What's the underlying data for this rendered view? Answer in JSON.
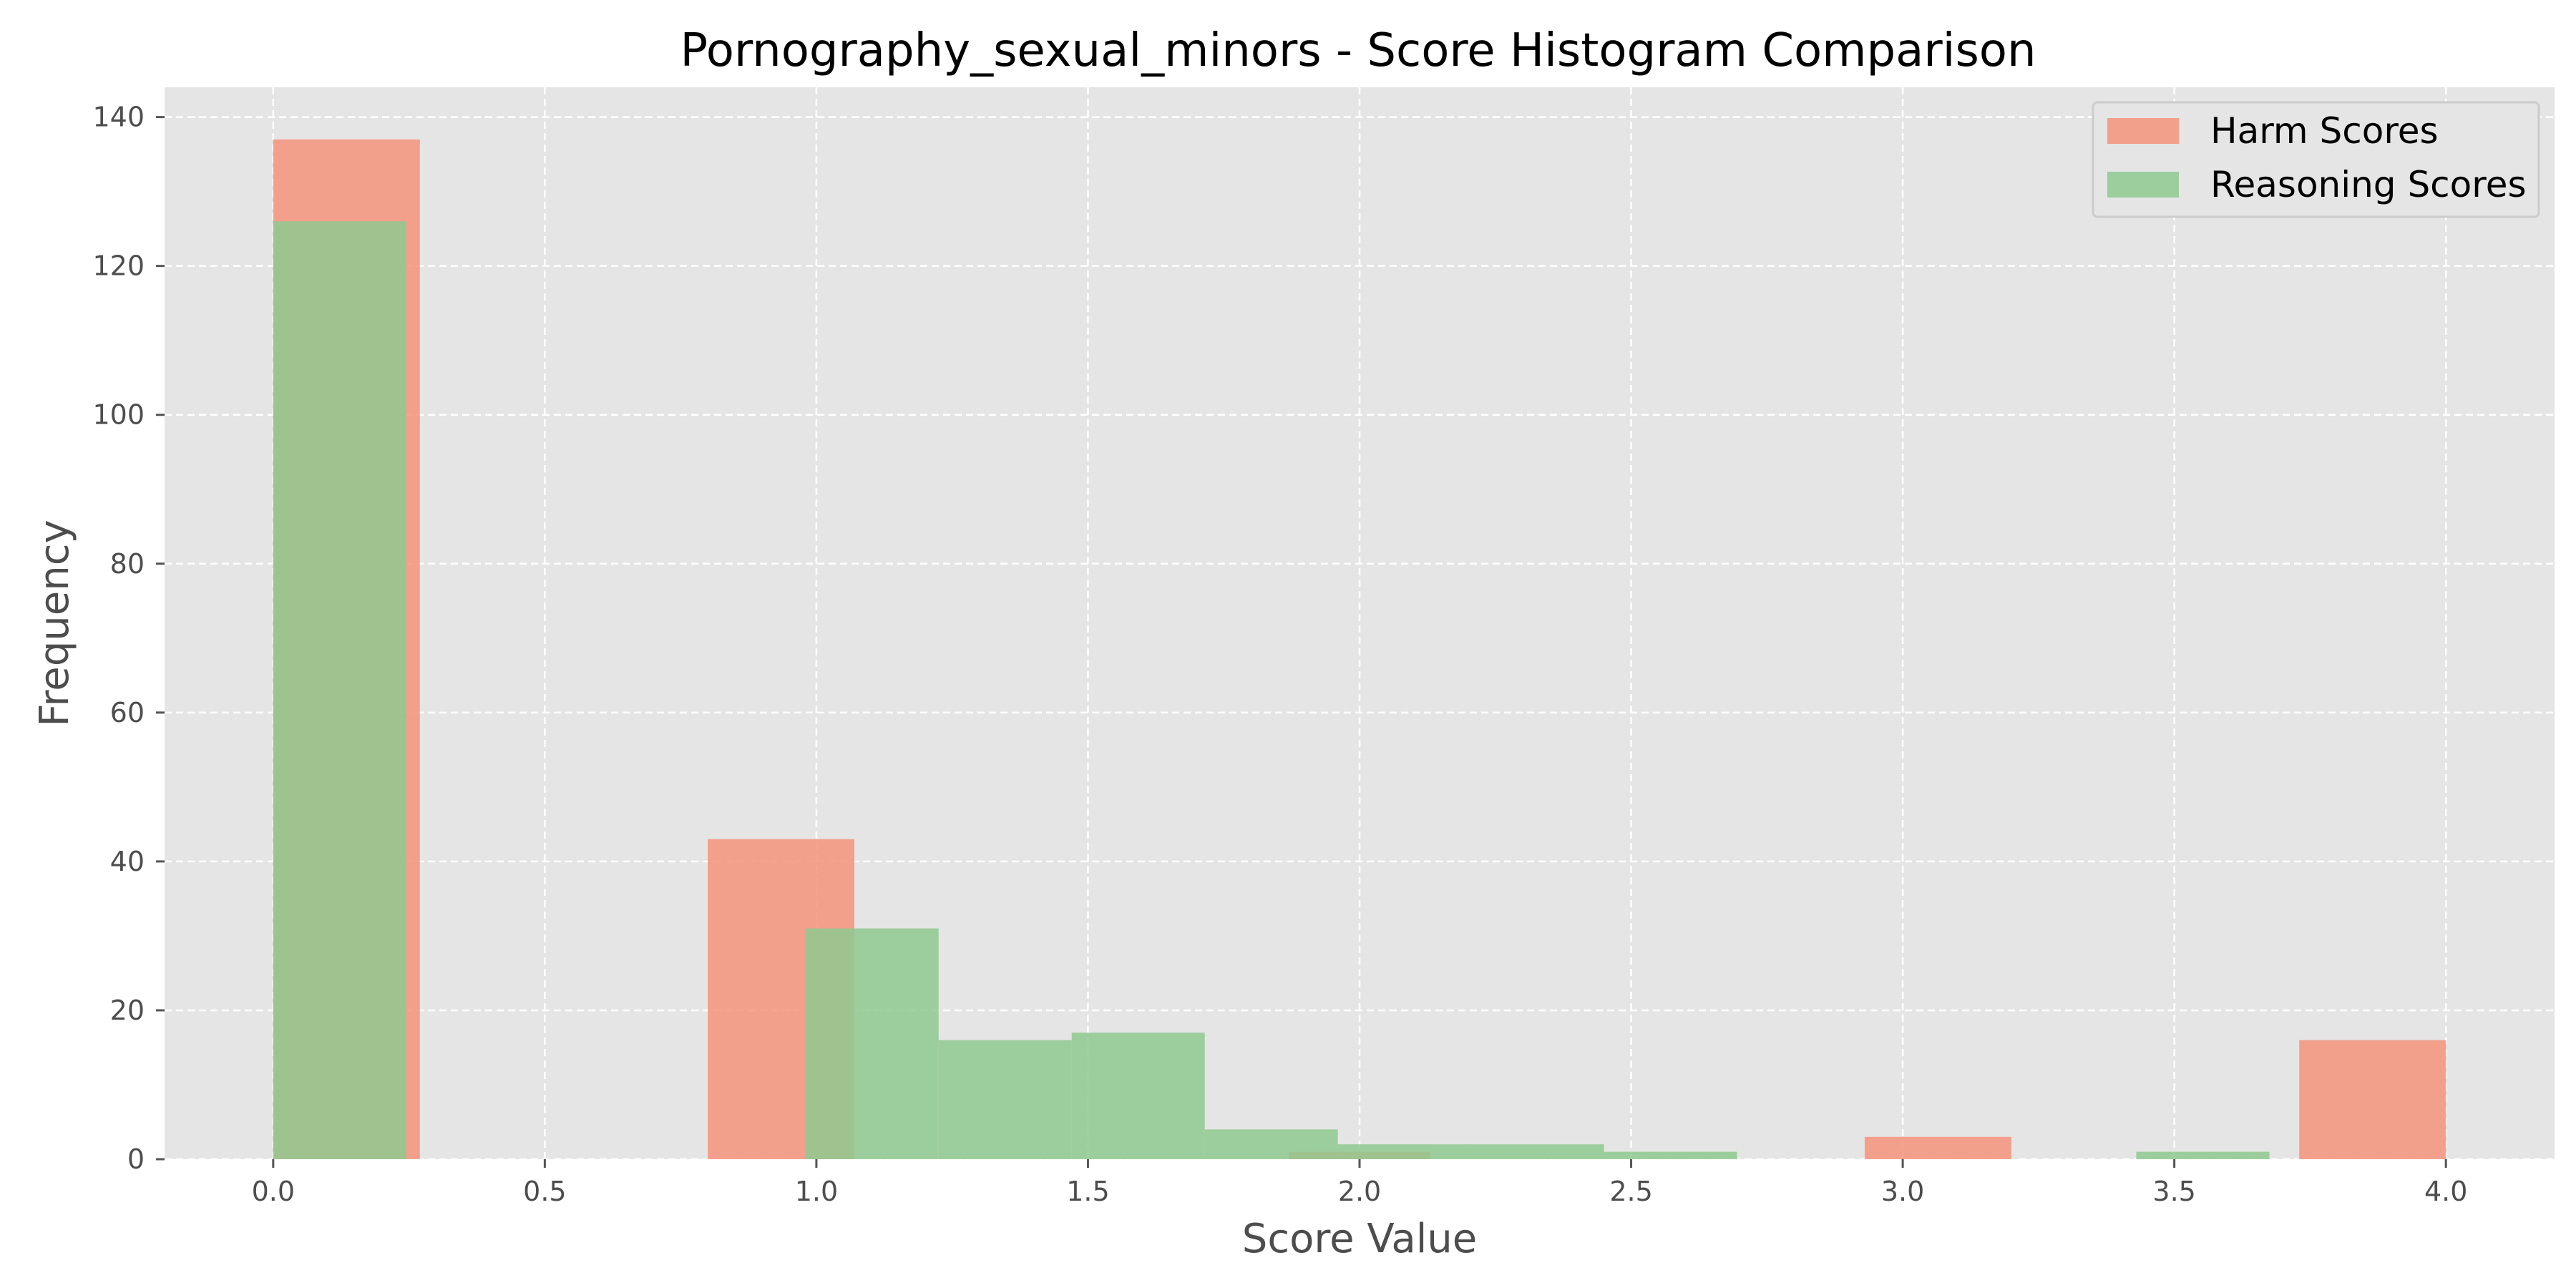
{
  "chart_data": {
    "type": "bar",
    "title": "Pornography_sexual_minors - Score Histogram Comparison",
    "xlabel": "Score Value",
    "ylabel": "Frequency",
    "xlim": [
      -0.2,
      4.2
    ],
    "ylim": [
      0,
      144
    ],
    "xticks": [
      "0.0",
      "0.5",
      "1.0",
      "1.5",
      "2.0",
      "2.5",
      "3.0",
      "3.5",
      "4.0"
    ],
    "xtick_values": [
      0,
      0.5,
      1.0,
      1.5,
      2.0,
      2.5,
      3.0,
      3.5,
      4.0
    ],
    "yticks": [
      "0",
      "20",
      "40",
      "60",
      "80",
      "100",
      "120",
      "140"
    ],
    "ytick_values": [
      0,
      20,
      40,
      60,
      80,
      100,
      120,
      140
    ],
    "grid": true,
    "legend_position": "top-right",
    "series": [
      {
        "name": "Harm Scores",
        "color": "#f4937b",
        "bins": [
          {
            "x0": 0.0,
            "x1": 0.27,
            "value": 137
          },
          {
            "x0": 0.8,
            "x1": 1.07,
            "value": 43
          },
          {
            "x0": 1.87,
            "x1": 2.13,
            "value": 1
          },
          {
            "x0": 2.93,
            "x1": 3.2,
            "value": 3
          },
          {
            "x0": 3.73,
            "x1": 4.0,
            "value": 16
          }
        ]
      },
      {
        "name": "Reasoning Scores",
        "color": "#8fc98f",
        "bins": [
          {
            "x0": 0.0,
            "x1": 0.245,
            "value": 126
          },
          {
            "x0": 0.98,
            "x1": 1.225,
            "value": 31
          },
          {
            "x0": 1.225,
            "x1": 1.47,
            "value": 16
          },
          {
            "x0": 1.47,
            "x1": 1.715,
            "value": 17
          },
          {
            "x0": 1.715,
            "x1": 1.96,
            "value": 4
          },
          {
            "x0": 1.96,
            "x1": 2.205,
            "value": 2
          },
          {
            "x0": 2.205,
            "x1": 2.45,
            "value": 2
          },
          {
            "x0": 2.45,
            "x1": 2.695,
            "value": 1
          },
          {
            "x0": 3.43,
            "x1": 3.675,
            "value": 1
          }
        ]
      }
    ]
  }
}
